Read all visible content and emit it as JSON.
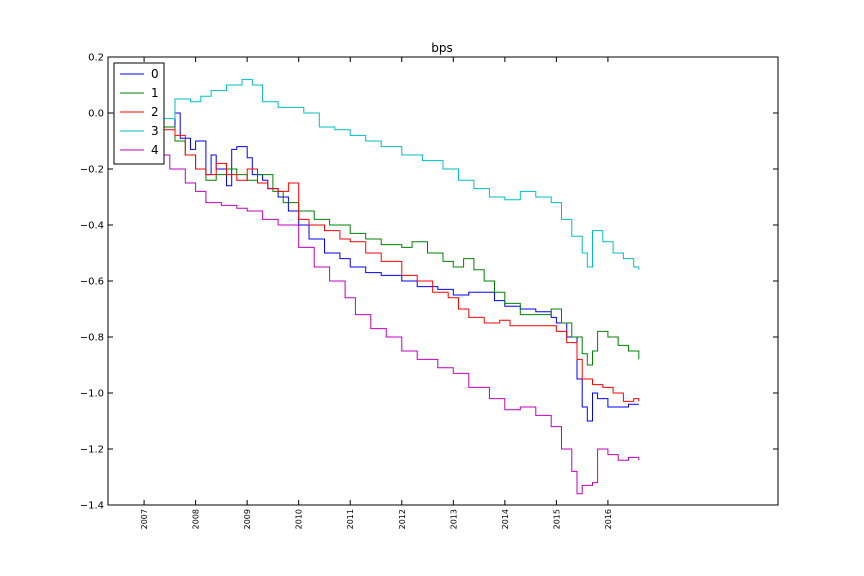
{
  "chart_data": {
    "type": "line",
    "title": "bps",
    "xlabel": "",
    "ylabel": "",
    "xlim": [
      2006.3,
      2019.3
    ],
    "ylim": [
      -1.4,
      0.2
    ],
    "yticks": [
      "0.2",
      "0.0",
      "−0.2",
      "−0.4",
      "−0.6",
      "−0.8",
      "−1.0",
      "−1.2",
      "−1.4"
    ],
    "xticks": [
      "2007",
      "2008",
      "2009",
      "2010",
      "2011",
      "2012",
      "2013",
      "2014",
      "2015",
      "2016"
    ],
    "grid": false,
    "legend_position": "top-left",
    "series": [
      {
        "name": "0",
        "color": "#0000ff",
        "x": [
          2006.3,
          2006.8,
          2007.3,
          2007.6,
          2007.7,
          2007.9,
          2008.0,
          2008.2,
          2008.3,
          2008.4,
          2008.6,
          2008.7,
          2008.8,
          2009.0,
          2009.1,
          2009.3,
          2009.4,
          2009.6,
          2009.8,
          2010.0,
          2010.2,
          2010.5,
          2010.8,
          2011.0,
          2011.3,
          2011.6,
          2012.0,
          2012.3,
          2012.7,
          2013.0,
          2013.3,
          2013.5,
          2013.8,
          2014.0,
          2014.3,
          2014.6,
          2014.9,
          2015.0,
          2015.2,
          2015.4,
          2015.5,
          2015.6,
          2015.7,
          2015.8,
          2016.0,
          2016.2,
          2016.4,
          2016.6
        ],
        "y": [
          0.0,
          -0.02,
          -0.05,
          0.0,
          -0.09,
          -0.13,
          -0.1,
          -0.22,
          -0.15,
          -0.2,
          -0.26,
          -0.13,
          -0.12,
          -0.16,
          -0.22,
          -0.24,
          -0.27,
          -0.3,
          -0.35,
          -0.4,
          -0.45,
          -0.5,
          -0.52,
          -0.55,
          -0.57,
          -0.58,
          -0.6,
          -0.62,
          -0.63,
          -0.65,
          -0.64,
          -0.64,
          -0.67,
          -0.69,
          -0.7,
          -0.71,
          -0.73,
          -0.75,
          -0.8,
          -0.95,
          -1.05,
          -1.1,
          -1.0,
          -1.02,
          -1.05,
          -1.05,
          -1.04,
          -1.04
        ]
      },
      {
        "name": "1",
        "color": "#008000",
        "x": [
          2006.3,
          2006.8,
          2007.3,
          2007.6,
          2007.8,
          2008.0,
          2008.2,
          2008.4,
          2008.6,
          2008.8,
          2009.0,
          2009.2,
          2009.5,
          2009.7,
          2010.0,
          2010.3,
          2010.6,
          2011.0,
          2011.3,
          2011.6,
          2012.0,
          2012.2,
          2012.5,
          2012.8,
          2013.0,
          2013.2,
          2013.4,
          2013.6,
          2013.8,
          2014.0,
          2014.3,
          2014.6,
          2014.9,
          2015.1,
          2015.3,
          2015.5,
          2015.6,
          2015.7,
          2015.8,
          2016.0,
          2016.2,
          2016.4,
          2016.6
        ],
        "y": [
          0.0,
          -0.02,
          -0.05,
          -0.1,
          -0.15,
          -0.2,
          -0.24,
          -0.22,
          -0.2,
          -0.22,
          -0.24,
          -0.22,
          -0.28,
          -0.32,
          -0.35,
          -0.38,
          -0.4,
          -0.43,
          -0.45,
          -0.47,
          -0.48,
          -0.46,
          -0.5,
          -0.53,
          -0.55,
          -0.52,
          -0.56,
          -0.6,
          -0.64,
          -0.68,
          -0.72,
          -0.72,
          -0.7,
          -0.75,
          -0.8,
          -0.86,
          -0.9,
          -0.85,
          -0.78,
          -0.8,
          -0.83,
          -0.85,
          -0.88
        ]
      },
      {
        "name": "2",
        "color": "#ff0000",
        "x": [
          2006.3,
          2006.8,
          2007.3,
          2007.6,
          2007.8,
          2008.0,
          2008.2,
          2008.4,
          2008.6,
          2008.8,
          2009.0,
          2009.2,
          2009.4,
          2009.6,
          2009.8,
          2010.0,
          2010.2,
          2010.5,
          2010.8,
          2011.0,
          2011.3,
          2011.6,
          2012.0,
          2012.3,
          2012.6,
          2012.9,
          2013.1,
          2013.3,
          2013.6,
          2013.9,
          2014.1,
          2014.4,
          2014.7,
          2015.0,
          2015.2,
          2015.4,
          2015.5,
          2015.7,
          2015.9,
          2016.1,
          2016.3,
          2016.5,
          2016.6
        ],
        "y": [
          0.0,
          -0.02,
          -0.06,
          -0.08,
          -0.15,
          -0.2,
          -0.22,
          -0.18,
          -0.22,
          -0.24,
          -0.2,
          -0.25,
          -0.27,
          -0.28,
          -0.25,
          -0.38,
          -0.4,
          -0.42,
          -0.45,
          -0.46,
          -0.5,
          -0.53,
          -0.58,
          -0.6,
          -0.64,
          -0.66,
          -0.7,
          -0.73,
          -0.75,
          -0.74,
          -0.76,
          -0.76,
          -0.76,
          -0.78,
          -0.82,
          -0.88,
          -0.95,
          -0.97,
          -0.98,
          -1.0,
          -1.03,
          -1.02,
          -1.03
        ]
      },
      {
        "name": "3",
        "color": "#00bfbf",
        "x": [
          2006.3,
          2006.6,
          2007.0,
          2007.3,
          2007.6,
          2007.9,
          2008.1,
          2008.3,
          2008.6,
          2008.9,
          2009.1,
          2009.3,
          2009.6,
          2009.9,
          2010.1,
          2010.4,
          2010.7,
          2011.0,
          2011.3,
          2011.6,
          2012.0,
          2012.4,
          2012.8,
          2013.1,
          2013.4,
          2013.7,
          2014.0,
          2014.3,
          2014.6,
          2014.9,
          2015.1,
          2015.3,
          2015.5,
          2015.6,
          2015.7,
          2015.9,
          2016.1,
          2016.3,
          2016.5,
          2016.6
        ],
        "y": [
          0.0,
          -0.02,
          0.0,
          -0.02,
          0.05,
          0.04,
          0.06,
          0.08,
          0.1,
          0.12,
          0.1,
          0.04,
          0.02,
          0.02,
          0.0,
          -0.05,
          -0.06,
          -0.08,
          -0.1,
          -0.12,
          -0.15,
          -0.17,
          -0.2,
          -0.24,
          -0.27,
          -0.3,
          -0.31,
          -0.28,
          -0.3,
          -0.32,
          -0.38,
          -0.44,
          -0.5,
          -0.55,
          -0.42,
          -0.46,
          -0.5,
          -0.52,
          -0.55,
          -0.56
        ]
      },
      {
        "name": "4",
        "color": "#bf00bf",
        "x": [
          2006.3,
          2006.6,
          2006.9,
          2007.2,
          2007.5,
          2007.8,
          2008.0,
          2008.2,
          2008.5,
          2008.8,
          2009.0,
          2009.3,
          2009.6,
          2010.0,
          2010.3,
          2010.6,
          2010.9,
          2011.1,
          2011.4,
          2011.7,
          2012.0,
          2012.3,
          2012.7,
          2013.0,
          2013.3,
          2013.7,
          2014.0,
          2014.3,
          2014.6,
          2014.9,
          2015.1,
          2015.3,
          2015.4,
          2015.5,
          2015.7,
          2015.8,
          2016.0,
          2016.2,
          2016.4,
          2016.6
        ],
        "y": [
          0.0,
          -0.06,
          -0.1,
          -0.15,
          -0.2,
          -0.25,
          -0.28,
          -0.32,
          -0.33,
          -0.34,
          -0.35,
          -0.38,
          -0.4,
          -0.48,
          -0.55,
          -0.6,
          -0.66,
          -0.72,
          -0.77,
          -0.8,
          -0.85,
          -0.88,
          -0.91,
          -0.93,
          -0.98,
          -1.02,
          -1.06,
          -1.05,
          -1.08,
          -1.12,
          -1.2,
          -1.28,
          -1.36,
          -1.33,
          -1.32,
          -1.2,
          -1.22,
          -1.24,
          -1.23,
          -1.24
        ]
      }
    ]
  }
}
